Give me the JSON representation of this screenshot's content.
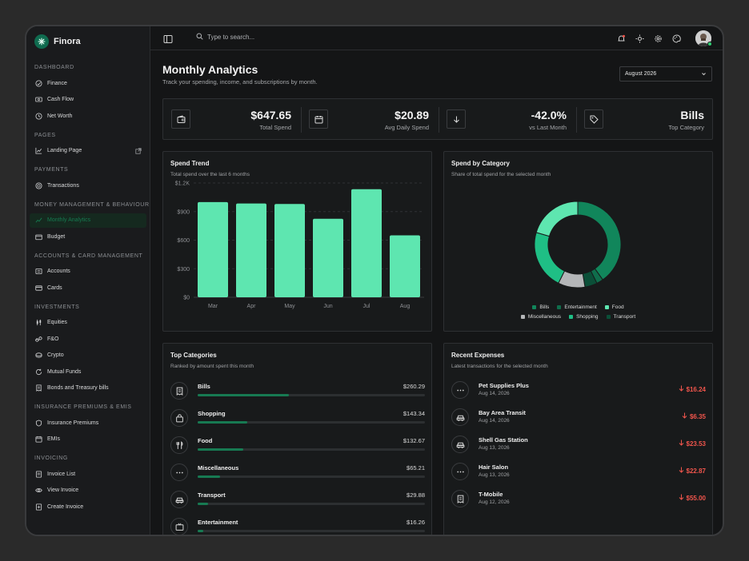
{
  "brand": {
    "name": "Finora"
  },
  "sidebar": {
    "sections": [
      {
        "title": "DASHBOARD",
        "items": [
          {
            "label": "Finance",
            "icon": "gauge-icon"
          },
          {
            "label": "Cash Flow",
            "icon": "cash-icon"
          },
          {
            "label": "Net Worth",
            "icon": "clock-icon"
          }
        ]
      },
      {
        "title": "PAGES",
        "items": [
          {
            "label": "Landing Page",
            "icon": "chart-line-icon"
          }
        ]
      },
      {
        "title": "PAYMENTS",
        "items": [
          {
            "label": "Transactions",
            "icon": "coin-icon"
          }
        ]
      },
      {
        "title": "MONEY MANAGEMENT & BEHAVIOUR",
        "items": [
          {
            "label": "Monthly Analytics",
            "icon": "analytics-icon"
          },
          {
            "label": "Budget",
            "icon": "wallet-icon"
          }
        ]
      },
      {
        "title": "ACCOUNTS & CARD MANAGEMENT",
        "items": [
          {
            "label": "Accounts",
            "icon": "bank-icon"
          },
          {
            "label": "Cards",
            "icon": "card-icon"
          }
        ]
      },
      {
        "title": "INVESTMENTS",
        "items": [
          {
            "label": "Equities",
            "icon": "candles-icon"
          },
          {
            "label": "F&O",
            "icon": "link-icon"
          },
          {
            "label": "Crypto",
            "icon": "crypto-icon"
          },
          {
            "label": "Mutual Funds",
            "icon": "refresh-icon"
          },
          {
            "label": "Bonds and Treasury bills",
            "icon": "receipt-icon"
          }
        ]
      },
      {
        "title": "INSURANCE PREMIUMS & EMIS",
        "items": [
          {
            "label": "Insurance Premiums",
            "icon": "shield-icon"
          },
          {
            "label": "EMIs",
            "icon": "calendar-icon"
          }
        ]
      },
      {
        "title": "INVOICING",
        "items": [
          {
            "label": "Invoice List",
            "icon": "invoice-icon"
          },
          {
            "label": "View Invoice",
            "icon": "eye-icon"
          },
          {
            "label": "Create Invoice",
            "icon": "plus-doc-icon"
          }
        ]
      }
    ],
    "active": "Monthly Analytics"
  },
  "topbar": {
    "search_placeholder": "Type to search..."
  },
  "page": {
    "title": "Monthly Analytics",
    "subtitle": "Track your spending, income, and subscriptions by month.",
    "month": "August 2026"
  },
  "stats": [
    {
      "value": "$647.65",
      "label": "Total Spend",
      "icon": "wallet-icon"
    },
    {
      "value": "$20.89",
      "label": "Avg Daily Spend",
      "icon": "calendar-icon"
    },
    {
      "value": "-42.0%",
      "label": "vs Last Month",
      "icon": "arrow-down-icon"
    },
    {
      "value": "Bills",
      "label": "Top Category",
      "icon": "tag-icon"
    }
  ],
  "spend_trend": {
    "title": "Spend Trend",
    "subtitle": "Total spend over the last 6 months"
  },
  "spend_by_category": {
    "title": "Spend by Category",
    "subtitle": "Share of total spend for the selected month"
  },
  "chart_data": [
    {
      "type": "bar",
      "categories": [
        "Mar",
        "Apr",
        "May",
        "Jun",
        "Jul",
        "Aug"
      ],
      "values": [
        1000,
        985,
        980,
        825,
        1135,
        650
      ],
      "yticks": [
        "$0",
        "$300",
        "$600",
        "$900",
        "$1.2K"
      ],
      "ylim": [
        0,
        1200
      ],
      "grid": true,
      "color": "#5ee6b0"
    },
    {
      "type": "pie",
      "labels": [
        "Bills",
        "Entertainment",
        "Food",
        "Miscellaneous",
        "Shopping",
        "Transport"
      ],
      "values": [
        260.29,
        16.26,
        132.67,
        65.21,
        143.34,
        29.88
      ],
      "colors": [
        "#11865b",
        "#0f6e4c",
        "#5ee6b0",
        "#b4b6b8",
        "#1fbf85",
        "#0b4f38"
      ],
      "legend": "bottom"
    }
  ],
  "top_categories": {
    "title": "Top Categories",
    "subtitle": "Ranked by amount spent this month",
    "items": [
      {
        "name": "Bills",
        "amount": "$260.29",
        "share": 0.4,
        "icon": "receipt-icon"
      },
      {
        "name": "Shopping",
        "amount": "$143.34",
        "share": 0.22,
        "icon": "bag-icon"
      },
      {
        "name": "Food",
        "amount": "$132.67",
        "share": 0.2,
        "icon": "fork-knife-icon"
      },
      {
        "name": "Miscellaneous",
        "amount": "$65.21",
        "share": 0.1,
        "icon": "dots-icon"
      },
      {
        "name": "Transport",
        "amount": "$29.88",
        "share": 0.046,
        "icon": "car-icon"
      },
      {
        "name": "Entertainment",
        "amount": "$16.26",
        "share": 0.025,
        "icon": "tv-icon"
      }
    ]
  },
  "recent_expenses": {
    "title": "Recent Expenses",
    "subtitle": "Latest transactions for the selected month",
    "items": [
      {
        "name": "Pet Supplies Plus",
        "date": "Aug 14, 2026",
        "amount": "$16.24",
        "icon": "dots-icon"
      },
      {
        "name": "Bay Area Transit",
        "date": "Aug 14, 2026",
        "amount": "$6.35",
        "icon": "car-icon"
      },
      {
        "name": "Shell Gas Station",
        "date": "Aug 13, 2026",
        "amount": "$23.53",
        "icon": "car-icon"
      },
      {
        "name": "Hair Salon",
        "date": "Aug 13, 2026",
        "amount": "$22.87",
        "icon": "dots-icon"
      },
      {
        "name": "T-Mobile",
        "date": "Aug 12, 2026",
        "amount": "$55.00",
        "icon": "receipt-icon"
      }
    ]
  },
  "colors": {
    "accent": "#5ee6b0",
    "brand": "#0f6b4f",
    "negative": "#f0554c"
  }
}
